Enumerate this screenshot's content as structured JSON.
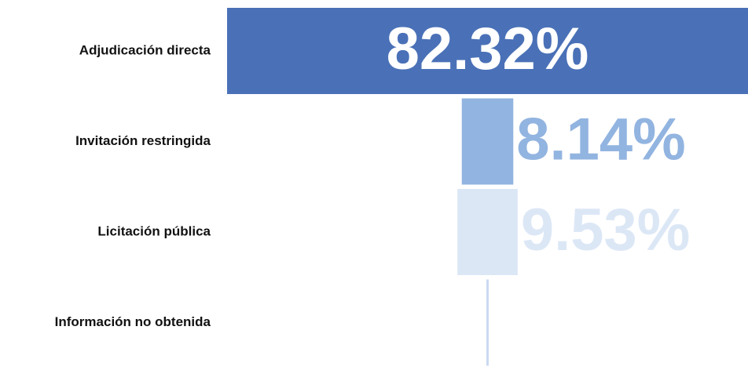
{
  "chart_data": {
    "type": "funnel-bar",
    "categories": [
      "Adjudicación directa",
      "Invitación restringida",
      "Licitación pública",
      "Información no obtenida"
    ],
    "values": [
      82.32,
      8.14,
      9.53,
      0.01
    ],
    "value_labels": [
      "82.32%",
      "8.14%",
      "9.53%",
      null
    ],
    "colors": [
      "#4a71b7",
      "#92b4e0",
      "#dce7f6",
      "#c9d9f1"
    ]
  }
}
